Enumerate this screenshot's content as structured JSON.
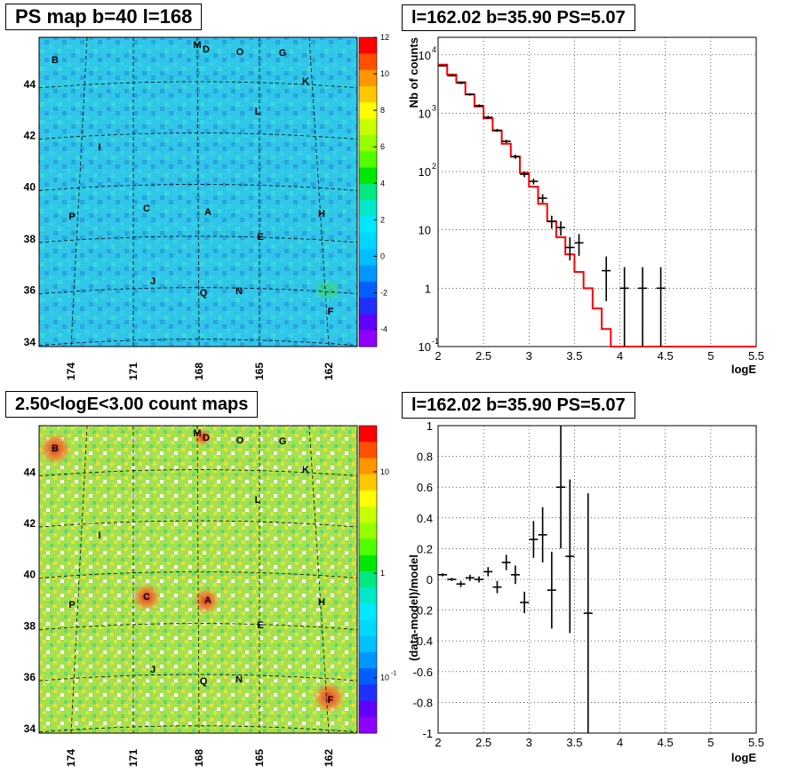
{
  "panels": {
    "map_top_title": "PS map b=40 l=168",
    "spec_top_title": "l=162.02 b=35.90 PS=5.07",
    "map_bottom_title": "2.50<logE<3.00 count maps",
    "spec_bottom_title": "l=162.02 b=35.90 PS=5.07"
  },
  "maps": {
    "b_ticks": [
      "34",
      "36",
      "38",
      "40",
      "42",
      "44"
    ],
    "l_ticks": [
      "174",
      "171",
      "168",
      "165",
      "162"
    ],
    "sources": [
      "B",
      "M",
      "D",
      "O",
      "G",
      "K",
      "L",
      "I",
      "C",
      "A",
      "P",
      "H",
      "E",
      "J",
      "Q",
      "N",
      "F"
    ],
    "ps_colorbar_ticks": [
      "12",
      "10",
      "8",
      "6",
      "4",
      "2",
      "0",
      "-2",
      "-4"
    ],
    "count_colorbar_ticks": [
      "10",
      "1",
      "10",
      "-1"
    ],
    "colors": {
      "ps_background": "#2ec8e8",
      "count_background": "#9be052",
      "dash": "#000000"
    }
  },
  "chart_data": [
    {
      "type": "line",
      "title": "l=162.02 b=35.90 PS=5.07",
      "xlabel": "logE",
      "ylabel": "Nb of counts",
      "xlim": [
        2,
        5.5
      ],
      "ylim": [
        0.1,
        20000
      ],
      "yscale": "log",
      "grid": true,
      "x_ticks": [
        "2",
        "2.5",
        "3",
        "3.5",
        "4",
        "4.5",
        "5",
        "5.5"
      ],
      "y_ticks": [
        {
          "base": "10",
          "exp": "4"
        },
        {
          "base": "10",
          "exp": "3"
        },
        {
          "base": "10",
          "exp": "2"
        },
        {
          "base": "10",
          "exp": ""
        },
        {
          "base": "1",
          "exp": ""
        },
        {
          "base": "10",
          "exp": "-1"
        }
      ],
      "series": [
        {
          "role": "model",
          "color": "#ff0000",
          "x": [
            2.0,
            2.1,
            2.2,
            2.3,
            2.4,
            2.5,
            2.6,
            2.7,
            2.8,
            2.9,
            3.0,
            3.1,
            3.2,
            3.3,
            3.4,
            3.5,
            3.6,
            3.7,
            3.8,
            3.9,
            4.0,
            4.1,
            4.2,
            4.3,
            4.4,
            4.5,
            4.6,
            4.7,
            4.8,
            4.9,
            5.0,
            5.1,
            5.2,
            5.3,
            5.4,
            5.5
          ],
          "values": [
            6800,
            4600,
            3400,
            2100,
            1300,
            820,
            500,
            300,
            180,
            95,
            55,
            28,
            14,
            7.5,
            3.8,
            1.9,
            1.0,
            0.45,
            0.2,
            0.1,
            0.1,
            0.1,
            0.1,
            0.1,
            0.1,
            0.1,
            0.1,
            0.1,
            0.1,
            0.1,
            0.1,
            0.1,
            0.1,
            0.1,
            0.1,
            0.1
          ]
        },
        {
          "role": "data",
          "color": "#000000",
          "points": [
            {
              "x": 2.05,
              "y": 6500,
              "lo": 6300,
              "hi": 6700
            },
            {
              "x": 2.15,
              "y": 4400,
              "lo": 4250,
              "hi": 4550
            },
            {
              "x": 2.25,
              "y": 3300,
              "lo": 3150,
              "hi": 3450
            },
            {
              "x": 2.35,
              "y": 2100,
              "lo": 2000,
              "hi": 2200
            },
            {
              "x": 2.45,
              "y": 1350,
              "lo": 1280,
              "hi": 1420
            },
            {
              "x": 2.55,
              "y": 850,
              "lo": 800,
              "hi": 900
            },
            {
              "x": 2.65,
              "y": 510,
              "lo": 480,
              "hi": 540
            },
            {
              "x": 2.75,
              "y": 330,
              "lo": 310,
              "hi": 350
            },
            {
              "x": 2.85,
              "y": 180,
              "lo": 165,
              "hi": 195
            },
            {
              "x": 2.95,
              "y": 90,
              "lo": 80,
              "hi": 100
            },
            {
              "x": 3.05,
              "y": 68,
              "lo": 60,
              "hi": 76
            },
            {
              "x": 3.15,
              "y": 35,
              "lo": 29,
              "hi": 41
            },
            {
              "x": 3.25,
              "y": 14,
              "lo": 10.5,
              "hi": 17.5
            },
            {
              "x": 3.35,
              "y": 11,
              "lo": 8,
              "hi": 14
            },
            {
              "x": 3.45,
              "y": 5,
              "lo": 3,
              "hi": 7.5
            },
            {
              "x": 3.55,
              "y": 6,
              "lo": 3.6,
              "hi": 8.5
            },
            {
              "x": 3.85,
              "y": 2,
              "lo": 0.6,
              "hi": 3.5
            },
            {
              "x": 4.05,
              "y": 1,
              "lo": 0.1,
              "hi": 2.3
            },
            {
              "x": 4.25,
              "y": 1,
              "lo": 0.1,
              "hi": 2.3
            },
            {
              "x": 4.45,
              "y": 1,
              "lo": 0.1,
              "hi": 2.3
            }
          ]
        }
      ]
    },
    {
      "type": "scatter",
      "title": "l=162.02 b=35.90 PS=5.07",
      "xlabel": "logE",
      "ylabel": "(data-model)/model",
      "xlim": [
        2,
        5.5
      ],
      "ylim": [
        -1,
        1
      ],
      "grid": true,
      "x_ticks": [
        "2",
        "2.5",
        "3",
        "3.5",
        "4",
        "4.5",
        "5",
        "5.5"
      ],
      "y_ticks": [
        "1",
        "0.8",
        "0.6",
        "0.4",
        "0.2",
        "0",
        "-0.2",
        "-0.4",
        "-0.6",
        "-0.8",
        "-1"
      ],
      "series": [
        {
          "role": "residual",
          "color": "#000000",
          "points": [
            {
              "x": 2.05,
              "y": 0.03,
              "e": 0.01
            },
            {
              "x": 2.15,
              "y": 0.0,
              "e": 0.01
            },
            {
              "x": 2.25,
              "y": -0.03,
              "e": 0.02
            },
            {
              "x": 2.35,
              "y": 0.01,
              "e": 0.02
            },
            {
              "x": 2.45,
              "y": 0.0,
              "e": 0.02
            },
            {
              "x": 2.55,
              "y": 0.05,
              "e": 0.03
            },
            {
              "x": 2.65,
              "y": -0.05,
              "e": 0.04
            },
            {
              "x": 2.75,
              "y": 0.11,
              "e": 0.05
            },
            {
              "x": 2.85,
              "y": 0.03,
              "e": 0.06
            },
            {
              "x": 2.95,
              "y": -0.15,
              "e": 0.07
            },
            {
              "x": 3.05,
              "y": 0.26,
              "e": 0.12
            },
            {
              "x": 3.15,
              "y": 0.29,
              "e": 0.18
            },
            {
              "x": 3.25,
              "y": -0.07,
              "e": 0.25
            },
            {
              "x": 3.35,
              "y": 0.6,
              "e": 0.4
            },
            {
              "x": 3.45,
              "y": 0.15,
              "e": 0.5
            },
            {
              "x": 3.65,
              "y": -0.22,
              "e": 0.78
            }
          ]
        }
      ]
    }
  ]
}
